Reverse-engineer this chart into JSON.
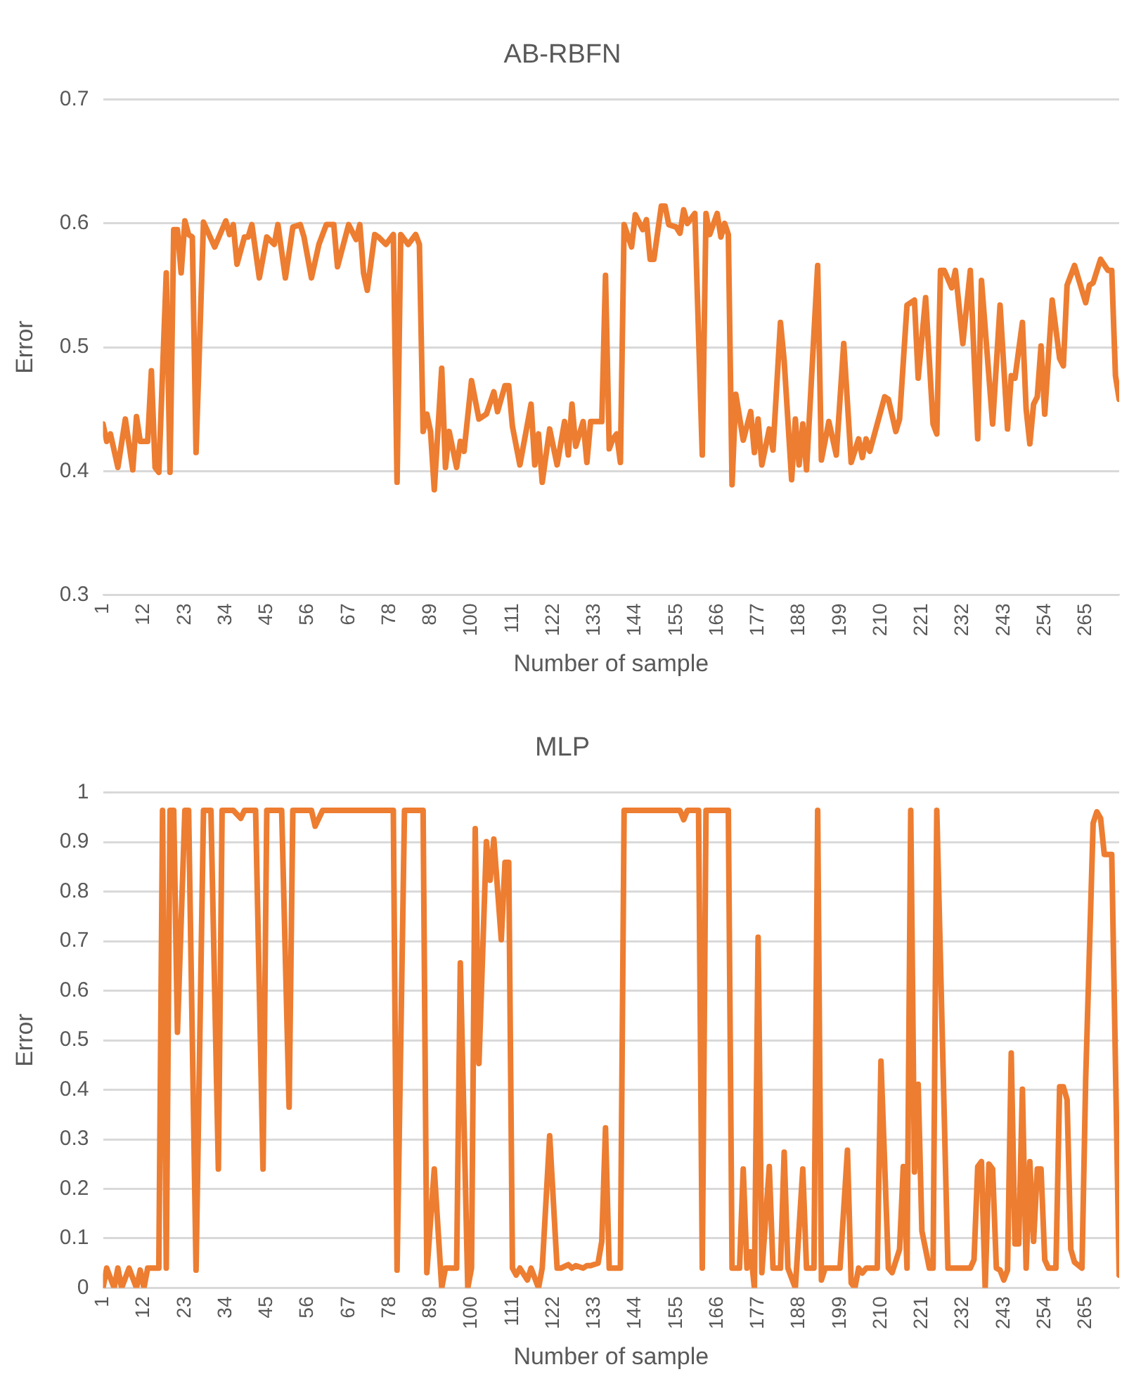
{
  "chart_data": [
    {
      "type": "line",
      "title": "AB-RBFN",
      "xlabel": "Number of sample",
      "ylabel": "Error",
      "xlim": [
        1,
        274
      ],
      "xticks": [
        1,
        12,
        23,
        34,
        45,
        56,
        67,
        78,
        89,
        100,
        111,
        122,
        133,
        144,
        155,
        166,
        177,
        188,
        199,
        210,
        221,
        232,
        243,
        254,
        265
      ],
      "ylim": [
        0.3,
        0.7
      ],
      "yticks": [
        0.3,
        0.4,
        0.5,
        0.6,
        0.7
      ],
      "grid": "y",
      "legend": false,
      "marker": "none",
      "line_style": "solid",
      "series": [
        {
          "color": "#ed7d31",
          "x": [
            1,
            2,
            3,
            5,
            7,
            9,
            10,
            11,
            13,
            14,
            15,
            16,
            18,
            19,
            20,
            21,
            22,
            23,
            24,
            25,
            26,
            28,
            31,
            34,
            35,
            36,
            37,
            39,
            40,
            41,
            43,
            45,
            47,
            48,
            50,
            52,
            54,
            55,
            57,
            59,
            61,
            63,
            64,
            67,
            69,
            70,
            71,
            72,
            74,
            75,
            77,
            79,
            80,
            81,
            83,
            85,
            86,
            87,
            88,
            89,
            90,
            92,
            93,
            94,
            96,
            97,
            98,
            100,
            102,
            104,
            106,
            107,
            109,
            110,
            111,
            113,
            116,
            117,
            118,
            119,
            121,
            123,
            125,
            126,
            127,
            128,
            130,
            131,
            132,
            135,
            136,
            137,
            138,
            139,
            140,
            141,
            143,
            144,
            146,
            147,
            148,
            149,
            151,
            152,
            153,
            155,
            156,
            157,
            158,
            160,
            162,
            163,
            164,
            166,
            167,
            168,
            169,
            170,
            171,
            173,
            175,
            176,
            177,
            178,
            180,
            181,
            183,
            184,
            186,
            187,
            188,
            189,
            190,
            193,
            194,
            196,
            198,
            200,
            202,
            204,
            205,
            206,
            207,
            211,
            212,
            214,
            215,
            217,
            219,
            220,
            222,
            224,
            225,
            226,
            227,
            229,
            230,
            232,
            234,
            236,
            237,
            240,
            242,
            244,
            245,
            246,
            248,
            249,
            250,
            251,
            252,
            253,
            254,
            256,
            258,
            259,
            260,
            262,
            265,
            266,
            267,
            269,
            271,
            272,
            273,
            274
          ],
          "values": [
            0.438,
            0.424,
            0.43,
            0.403,
            0.442,
            0.401,
            0.444,
            0.424,
            0.424,
            0.481,
            0.403,
            0.399,
            0.56,
            0.399,
            0.595,
            0.595,
            0.56,
            0.602,
            0.591,
            0.589,
            0.415,
            0.601,
            0.581,
            0.602,
            0.591,
            0.599,
            0.567,
            0.589,
            0.589,
            0.599,
            0.556,
            0.589,
            0.583,
            0.599,
            0.556,
            0.597,
            0.599,
            0.589,
            0.556,
            0.583,
            0.599,
            0.599,
            0.565,
            0.599,
            0.587,
            0.599,
            0.56,
            0.546,
            0.591,
            0.589,
            0.583,
            0.591,
            0.391,
            0.591,
            0.583,
            0.591,
            0.583,
            0.432,
            0.446,
            0.432,
            0.385,
            0.483,
            0.403,
            0.432,
            0.403,
            0.424,
            0.416,
            0.473,
            0.442,
            0.446,
            0.464,
            0.448,
            0.469,
            0.469,
            0.436,
            0.405,
            0.454,
            0.405,
            0.43,
            0.391,
            0.434,
            0.405,
            0.44,
            0.413,
            0.454,
            0.42,
            0.44,
            0.407,
            0.44,
            0.44,
            0.558,
            0.418,
            0.426,
            0.43,
            0.407,
            0.599,
            0.581,
            0.607,
            0.595,
            0.603,
            0.571,
            0.571,
            0.614,
            0.614,
            0.599,
            0.597,
            0.592,
            0.611,
            0.6,
            0.608,
            0.413,
            0.608,
            0.591,
            0.608,
            0.589,
            0.6,
            0.591,
            0.389,
            0.462,
            0.425,
            0.448,
            0.415,
            0.442,
            0.405,
            0.434,
            0.417,
            0.52,
            0.489,
            0.393,
            0.442,
            0.405,
            0.438,
            0.401,
            0.566,
            0.409,
            0.44,
            0.413,
            0.503,
            0.407,
            0.426,
            0.411,
            0.426,
            0.416,
            0.46,
            0.458,
            0.432,
            0.442,
            0.534,
            0.538,
            0.475,
            0.54,
            0.438,
            0.43,
            0.562,
            0.562,
            0.548,
            0.562,
            0.503,
            0.562,
            0.426,
            0.554,
            0.438,
            0.534,
            0.434,
            0.477,
            0.475,
            0.52,
            0.45,
            0.422,
            0.454,
            0.46,
            0.501,
            0.446,
            0.538,
            0.491,
            0.485,
            0.55,
            0.566,
            0.536,
            0.55,
            0.552,
            0.571,
            0.562,
            0.562,
            0.477,
            0.458
          ]
        }
      ]
    },
    {
      "type": "line",
      "title": "MLP",
      "xlabel": "Number of sample",
      "ylabel": "Error",
      "xlim": [
        1,
        274
      ],
      "xticks": [
        1,
        12,
        23,
        34,
        45,
        56,
        67,
        78,
        89,
        100,
        111,
        122,
        133,
        144,
        155,
        166,
        177,
        188,
        199,
        210,
        221,
        232,
        243,
        254,
        265
      ],
      "ylim": [
        0,
        1
      ],
      "yticks": [
        0,
        0.1,
        0.2,
        0.3,
        0.4,
        0.5,
        0.6,
        0.7,
        0.8,
        0.9,
        1
      ],
      "grid": "y",
      "legend": false,
      "marker": "none",
      "line_style": "solid",
      "series": [
        {
          "color": "#ed7d31",
          "x": [
            1,
            2,
            4,
            5,
            6,
            8,
            10,
            11,
            12,
            13,
            16,
            17,
            18,
            19,
            20,
            21,
            23,
            24,
            26,
            28,
            30,
            32,
            33,
            36,
            38,
            39,
            42,
            44,
            45,
            49,
            51,
            52,
            57,
            58,
            60,
            79,
            80,
            82,
            87,
            88,
            90,
            92,
            93,
            96,
            97,
            99,
            100,
            101,
            102,
            104,
            105,
            106,
            108,
            109,
            110,
            111,
            112,
            113,
            115,
            116,
            118,
            119,
            121,
            123,
            124,
            126,
            127,
            128,
            130,
            131,
            132,
            134,
            135,
            136,
            137,
            140,
            141,
            156,
            157,
            158,
            161,
            162,
            163,
            169,
            170,
            172,
            173,
            174,
            175,
            176,
            177,
            178,
            180,
            181,
            183,
            184,
            185,
            187,
            189,
            190,
            192,
            193,
            194,
            195,
            199,
            201,
            202,
            203,
            204,
            205,
            206,
            209,
            210,
            212,
            213,
            215,
            216,
            217,
            218,
            219,
            220,
            221,
            223,
            224,
            225,
            228,
            234,
            235,
            236,
            237,
            238,
            239,
            240,
            241,
            242,
            243,
            244,
            245,
            246,
            247,
            248,
            249,
            250,
            251,
            252,
            253,
            254,
            255,
            257,
            258,
            259,
            260,
            261,
            262,
            264,
            265,
            267,
            268,
            269,
            270,
            272,
            274
          ],
          "values": [
            0,
            0.04,
            0,
            0.04,
            0,
            0.04,
            0,
            0.036,
            0,
            0.04,
            0.04,
            0.964,
            0.04,
            0.964,
            0.964,
            0.516,
            0.964,
            0.964,
            0.036,
            0.964,
            0.964,
            0.24,
            0.964,
            0.964,
            0.948,
            0.964,
            0.964,
            0.24,
            0.964,
            0.964,
            0.365,
            0.964,
            0.964,
            0.932,
            0.964,
            0.964,
            0.036,
            0.964,
            0.964,
            0.031,
            0.24,
            0,
            0.04,
            0.04,
            0.656,
            0,
            0.04,
            0.927,
            0.453,
            0.901,
            0.823,
            0.906,
            0.703,
            0.859,
            0.859,
            0.04,
            0.026,
            0.04,
            0.016,
            0.04,
            0,
            0.04,
            0.307,
            0.04,
            0.04,
            0.047,
            0.04,
            0.045,
            0.04,
            0.045,
            0.045,
            0.05,
            0.094,
            0.323,
            0.04,
            0.04,
            0.964,
            0.964,
            0.945,
            0.964,
            0.964,
            0.04,
            0.964,
            0.964,
            0.04,
            0.04,
            0.24,
            0.04,
            0.073,
            0,
            0.708,
            0.031,
            0.245,
            0.04,
            0.04,
            0.274,
            0.04,
            0,
            0.24,
            0.04,
            0.04,
            0.964,
            0.016,
            0.04,
            0.04,
            0.278,
            0.01,
            0,
            0.04,
            0.03,
            0.04,
            0.04,
            0.458,
            0.04,
            0.031,
            0.078,
            0.245,
            0.04,
            0.964,
            0.234,
            0.411,
            0.115,
            0.04,
            0.04,
            0.964,
            0.04,
            0.04,
            0.057,
            0.245,
            0.255,
            0,
            0.25,
            0.24,
            0.04,
            0.036,
            0.016,
            0.036,
            0.474,
            0.089,
            0.089,
            0.401,
            0.04,
            0.255,
            0.094,
            0.24,
            0.24,
            0.057,
            0.04,
            0.04,
            0.406,
            0.406,
            0.38,
            0.078,
            0.052,
            0.04,
            0.422,
            0.938,
            0.961,
            0.948,
            0.875,
            0.875,
            0.026
          ]
        }
      ]
    }
  ]
}
